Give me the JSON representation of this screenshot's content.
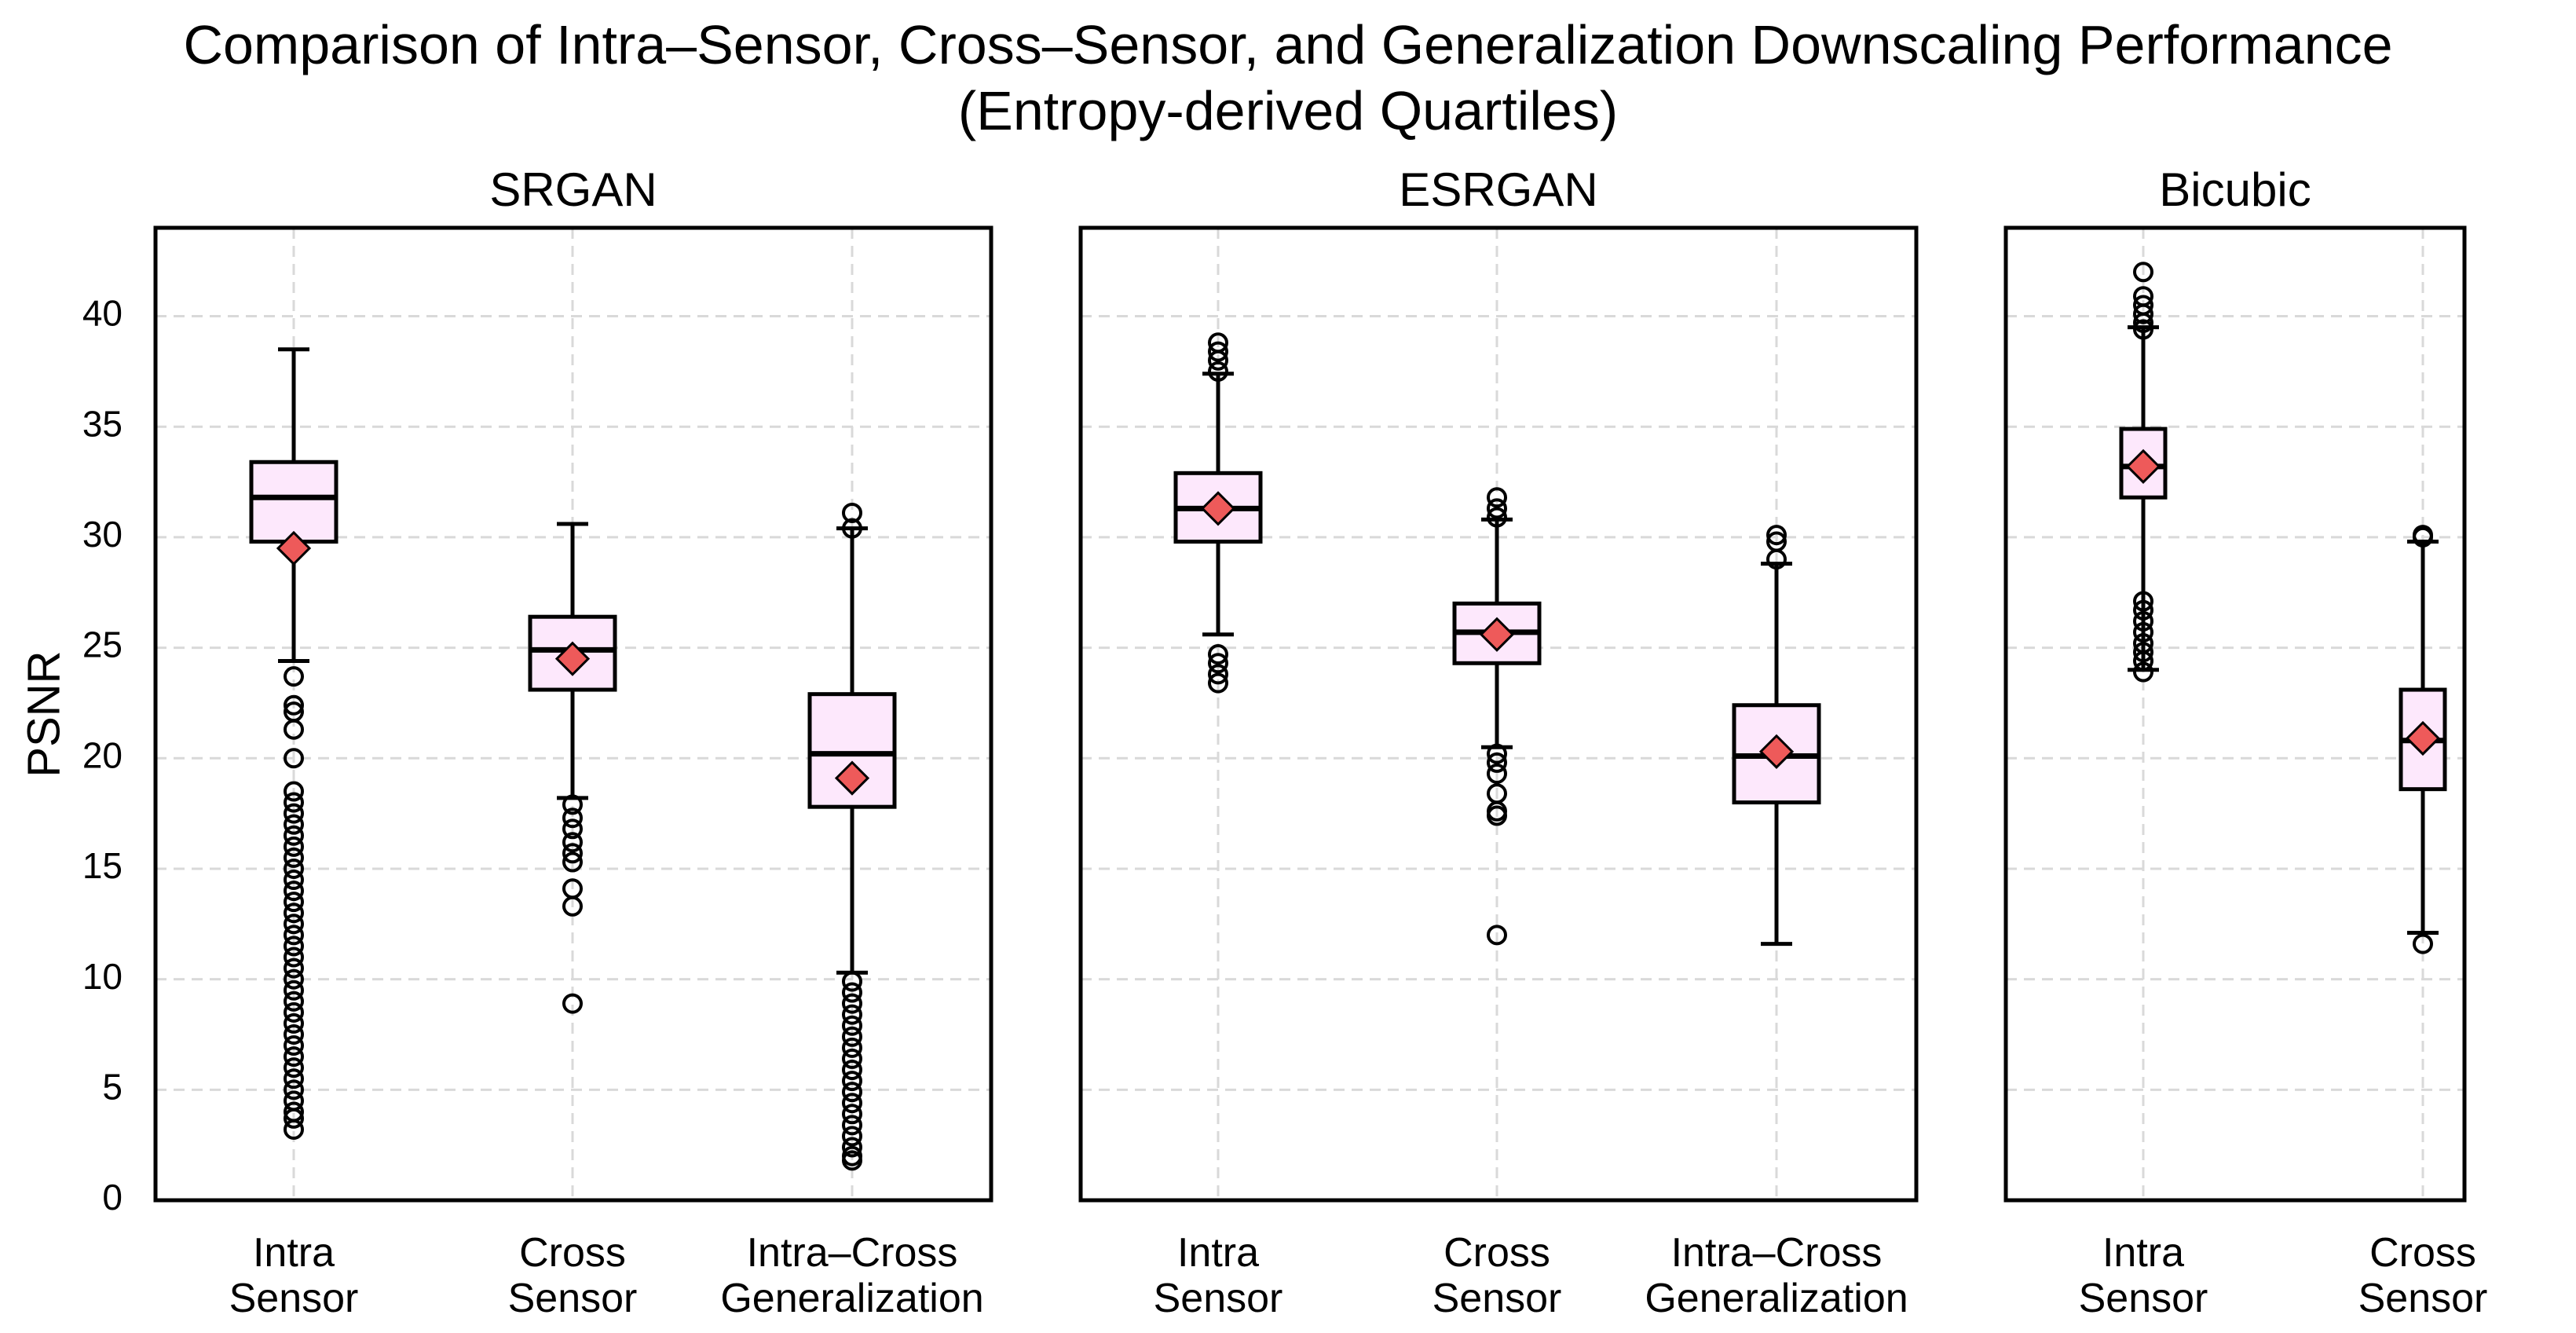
{
  "chart_data": {
    "type": "box",
    "title_line1": "Comparison of Intra–Sensor, Cross–Sensor, and Generalization Downscaling Performance",
    "title_line2": "(Entropy-derived Quartiles)",
    "ylabel": "PSNR",
    "ylim": [
      0,
      44
    ],
    "yticks": [
      "0",
      "5",
      "10",
      "15",
      "20",
      "25",
      "30",
      "35",
      "40"
    ],
    "grid": true,
    "colors": {
      "box_fill": "#fde8fc",
      "mean_marker": "#ee5a5a",
      "grid": "#d9d9d9"
    },
    "panels": [
      {
        "title": "SRGAN",
        "groups": [
          {
            "label": [
              "Intra",
              "Sensor"
            ],
            "whisker_low": 24.4,
            "q1": 29.8,
            "median": 31.8,
            "q3": 33.4,
            "whisker_high": 38.5,
            "mean": 29.5,
            "outliers": [
              23.7,
              22.4,
              22.1,
              21.3,
              20.0,
              18.5,
              18.0,
              17.5,
              17.0,
              16.5,
              16.0,
              15.5,
              15.0,
              14.5,
              14.0,
              13.5,
              13.0,
              12.5,
              12.0,
              11.5,
              11.0,
              10.5,
              10.0,
              9.5,
              9.0,
              8.5,
              8.0,
              7.5,
              7.0,
              6.5,
              6.0,
              5.5,
              5.0,
              4.5,
              4.0,
              3.7,
              3.2
            ]
          },
          {
            "label": [
              "Cross",
              "Sensor"
            ],
            "whisker_low": 18.2,
            "q1": 23.1,
            "median": 24.9,
            "q3": 26.4,
            "whisker_high": 30.6,
            "mean": 24.5,
            "outliers": [
              17.9,
              17.3,
              16.8,
              16.2,
              15.7,
              15.3,
              14.1,
              13.3,
              8.9
            ]
          },
          {
            "label": [
              "Intra–Cross",
              "Generalization"
            ],
            "whisker_low": 10.3,
            "q1": 17.8,
            "median": 20.2,
            "q3": 22.9,
            "whisker_high": 30.4,
            "mean": 19.1,
            "outliers": [
              31.1,
              30.4,
              9.9,
              9.4,
              8.9,
              8.4,
              7.9,
              7.4,
              6.9,
              6.4,
              5.9,
              5.4,
              4.9,
              4.4,
              3.9,
              3.4,
              2.9,
              2.4,
              2.0,
              1.8
            ]
          }
        ]
      },
      {
        "title": "ESRGAN",
        "groups": [
          {
            "label": [
              "Intra",
              "Sensor"
            ],
            "whisker_low": 25.6,
            "q1": 29.8,
            "median": 31.3,
            "q3": 32.9,
            "whisker_high": 37.4,
            "mean": 31.3,
            "outliers": [
              38.8,
              38.4,
              38.0,
              37.5,
              24.7,
              24.3,
              23.8,
              23.4
            ]
          },
          {
            "label": [
              "Cross",
              "Sensor"
            ],
            "whisker_low": 20.5,
            "q1": 24.3,
            "median": 25.7,
            "q3": 27.0,
            "whisker_high": 30.8,
            "mean": 25.6,
            "outliers": [
              31.8,
              31.3,
              30.9,
              20.2,
              19.8,
              19.3,
              18.4,
              17.6,
              17.4,
              12.0
            ]
          },
          {
            "label": [
              "Intra–Cross",
              "Generalization"
            ],
            "whisker_low": 11.6,
            "q1": 18.0,
            "median": 20.1,
            "q3": 22.4,
            "whisker_high": 28.8,
            "mean": 20.3,
            "outliers": [
              30.1,
              29.8,
              29.0
            ]
          }
        ]
      },
      {
        "title": "Bicubic",
        "groups": [
          {
            "label": [
              "Intra",
              "Sensor"
            ],
            "whisker_low": 24.0,
            "q1": 31.8,
            "median": 33.2,
            "q3": 34.9,
            "whisker_high": 39.5,
            "mean": 33.2,
            "outliers": [
              42.0,
              40.9,
              40.5,
              40.1,
              39.7,
              39.4,
              27.1,
              26.7,
              26.2,
              25.7,
              25.2,
              24.8,
              24.4,
              23.9
            ]
          },
          {
            "label": [
              "Cross",
              "Sensor"
            ],
            "whisker_low": 12.1,
            "q1": 18.6,
            "median": 20.8,
            "q3": 23.1,
            "whisker_high": 29.8,
            "mean": 20.9,
            "outliers": [
              30.1,
              30.0,
              11.6
            ]
          }
        ]
      }
    ]
  }
}
